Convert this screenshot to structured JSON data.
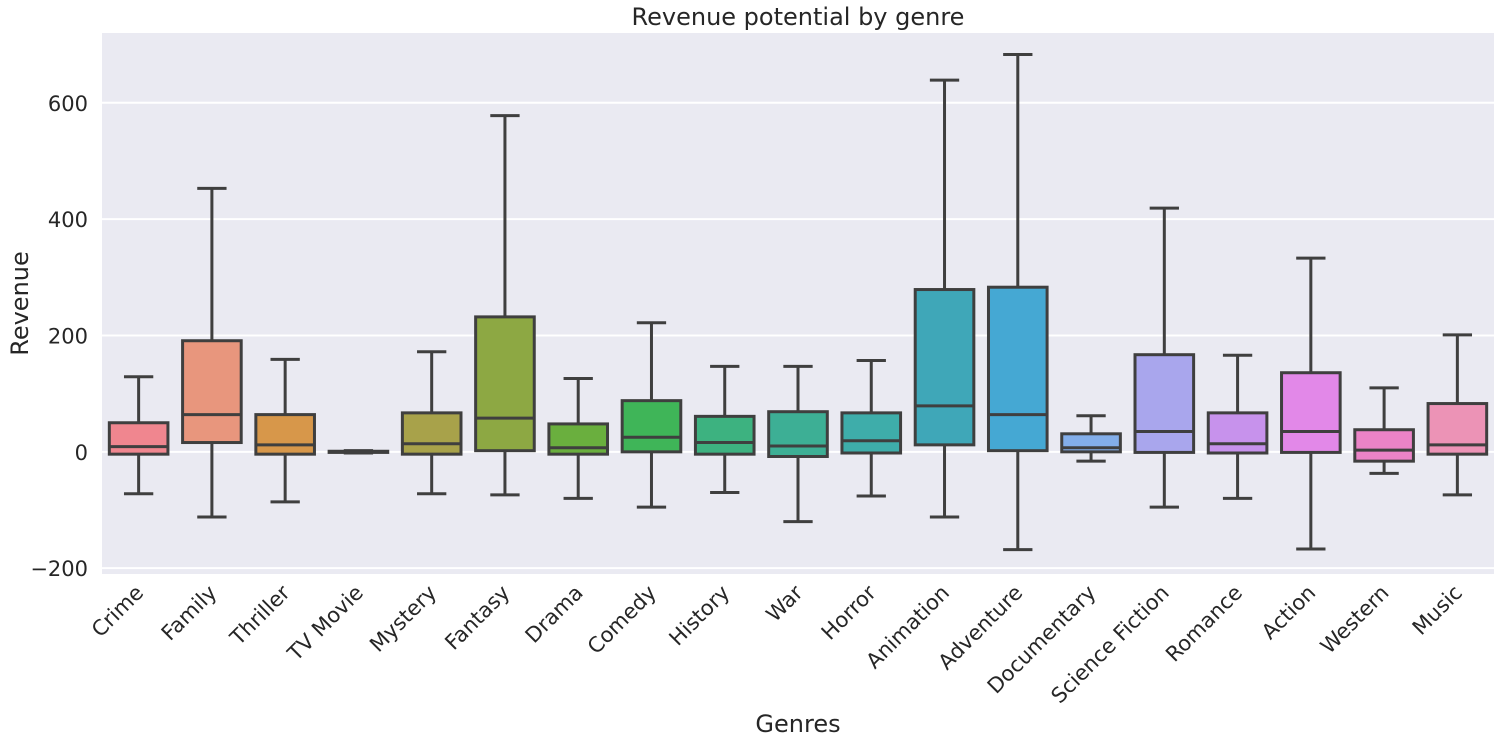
{
  "chart_data": {
    "type": "box",
    "title": "Revenue potential by genre",
    "xlabel": "Genres",
    "ylabel": "Revenue",
    "ylim": [
      -210,
      720
    ],
    "yticks": [
      -200,
      0,
      200,
      400,
      600
    ],
    "grid": true,
    "colors": {
      "background": "#eaeaf2",
      "grid": "#ffffff",
      "box_edge": "#3f3f3f"
    },
    "categories": [
      "Crime",
      "Family",
      "Thriller",
      "TV Movie",
      "Mystery",
      "Fantasy",
      "Drama",
      "Comedy",
      "History",
      "War",
      "Horror",
      "Animation",
      "Adventure",
      "Documentary",
      "Science Fiction",
      "Romance",
      "Action",
      "Western",
      "Music"
    ],
    "boxes": [
      {
        "category": "Crime",
        "whisker_low": -72,
        "q1": -4,
        "median": 9,
        "q3": 50,
        "whisker_high": 129,
        "color": "#f0868f"
      },
      {
        "category": "Family",
        "whisker_low": -112,
        "q1": 16,
        "median": 64,
        "q3": 191,
        "whisker_high": 453,
        "color": "#e8967d"
      },
      {
        "category": "Thriller",
        "whisker_low": -86,
        "q1": -4,
        "median": 12,
        "q3": 64,
        "whisker_high": 159,
        "color": "#d7974a"
      },
      {
        "category": "TV Movie",
        "whisker_low": -2,
        "q1": -1,
        "median": 0,
        "q3": 1,
        "whisker_high": 2,
        "color": "#c09a4c"
      },
      {
        "category": "Mystery",
        "whisker_low": -72,
        "q1": -4,
        "median": 14,
        "q3": 67,
        "whisker_high": 172,
        "color": "#a8a24a"
      },
      {
        "category": "Fantasy",
        "whisker_low": -74,
        "q1": 2,
        "median": 58,
        "q3": 232,
        "whisker_high": 578,
        "color": "#8da843"
      },
      {
        "category": "Drama",
        "whisker_low": -80,
        "q1": -4,
        "median": 7,
        "q3": 48,
        "whisker_high": 126,
        "color": "#6aaf3e"
      },
      {
        "category": "Comedy",
        "whisker_low": -95,
        "q1": 0,
        "median": 25,
        "q3": 88,
        "whisker_high": 222,
        "color": "#3fb558"
      },
      {
        "category": "History",
        "whisker_low": -70,
        "q1": -4,
        "median": 16,
        "q3": 61,
        "whisker_high": 147,
        "color": "#3db280"
      },
      {
        "category": "War",
        "whisker_low": -120,
        "q1": -8,
        "median": 10,
        "q3": 69,
        "whisker_high": 147,
        "color": "#3daf95"
      },
      {
        "category": "Horror",
        "whisker_low": -76,
        "q1": -2,
        "median": 19,
        "q3": 67,
        "whisker_high": 157,
        "color": "#3eadaa"
      },
      {
        "category": "Animation",
        "whisker_low": -112,
        "q1": 12,
        "median": 79,
        "q3": 279,
        "whisker_high": 639,
        "color": "#3fa7b8"
      },
      {
        "category": "Adventure",
        "whisker_low": -168,
        "q1": 2,
        "median": 64,
        "q3": 283,
        "whisker_high": 683,
        "color": "#45a8d3"
      },
      {
        "category": "Documentary",
        "whisker_low": -16,
        "q1": 0,
        "median": 7,
        "q3": 31,
        "whisker_high": 62,
        "color": "#83aeea"
      },
      {
        "category": "Science Fiction",
        "whisker_low": -95,
        "q1": -1,
        "median": 35,
        "q3": 167,
        "whisker_high": 419,
        "color": "#a9a6ed"
      },
      {
        "category": "Romance",
        "whisker_low": -80,
        "q1": -2,
        "median": 14,
        "q3": 67,
        "whisker_high": 166,
        "color": "#c792ec"
      },
      {
        "category": "Action",
        "whisker_low": -167,
        "q1": -1,
        "median": 35,
        "q3": 136,
        "whisker_high": 333,
        "color": "#e288e8"
      },
      {
        "category": "Western",
        "whisker_low": -37,
        "q1": -16,
        "median": 3,
        "q3": 38,
        "whisker_high": 110,
        "color": "#eb83c7"
      },
      {
        "category": "Music",
        "whisker_low": -74,
        "q1": -4,
        "median": 12,
        "q3": 83,
        "whisker_high": 201,
        "color": "#ec93b6"
      }
    ]
  }
}
